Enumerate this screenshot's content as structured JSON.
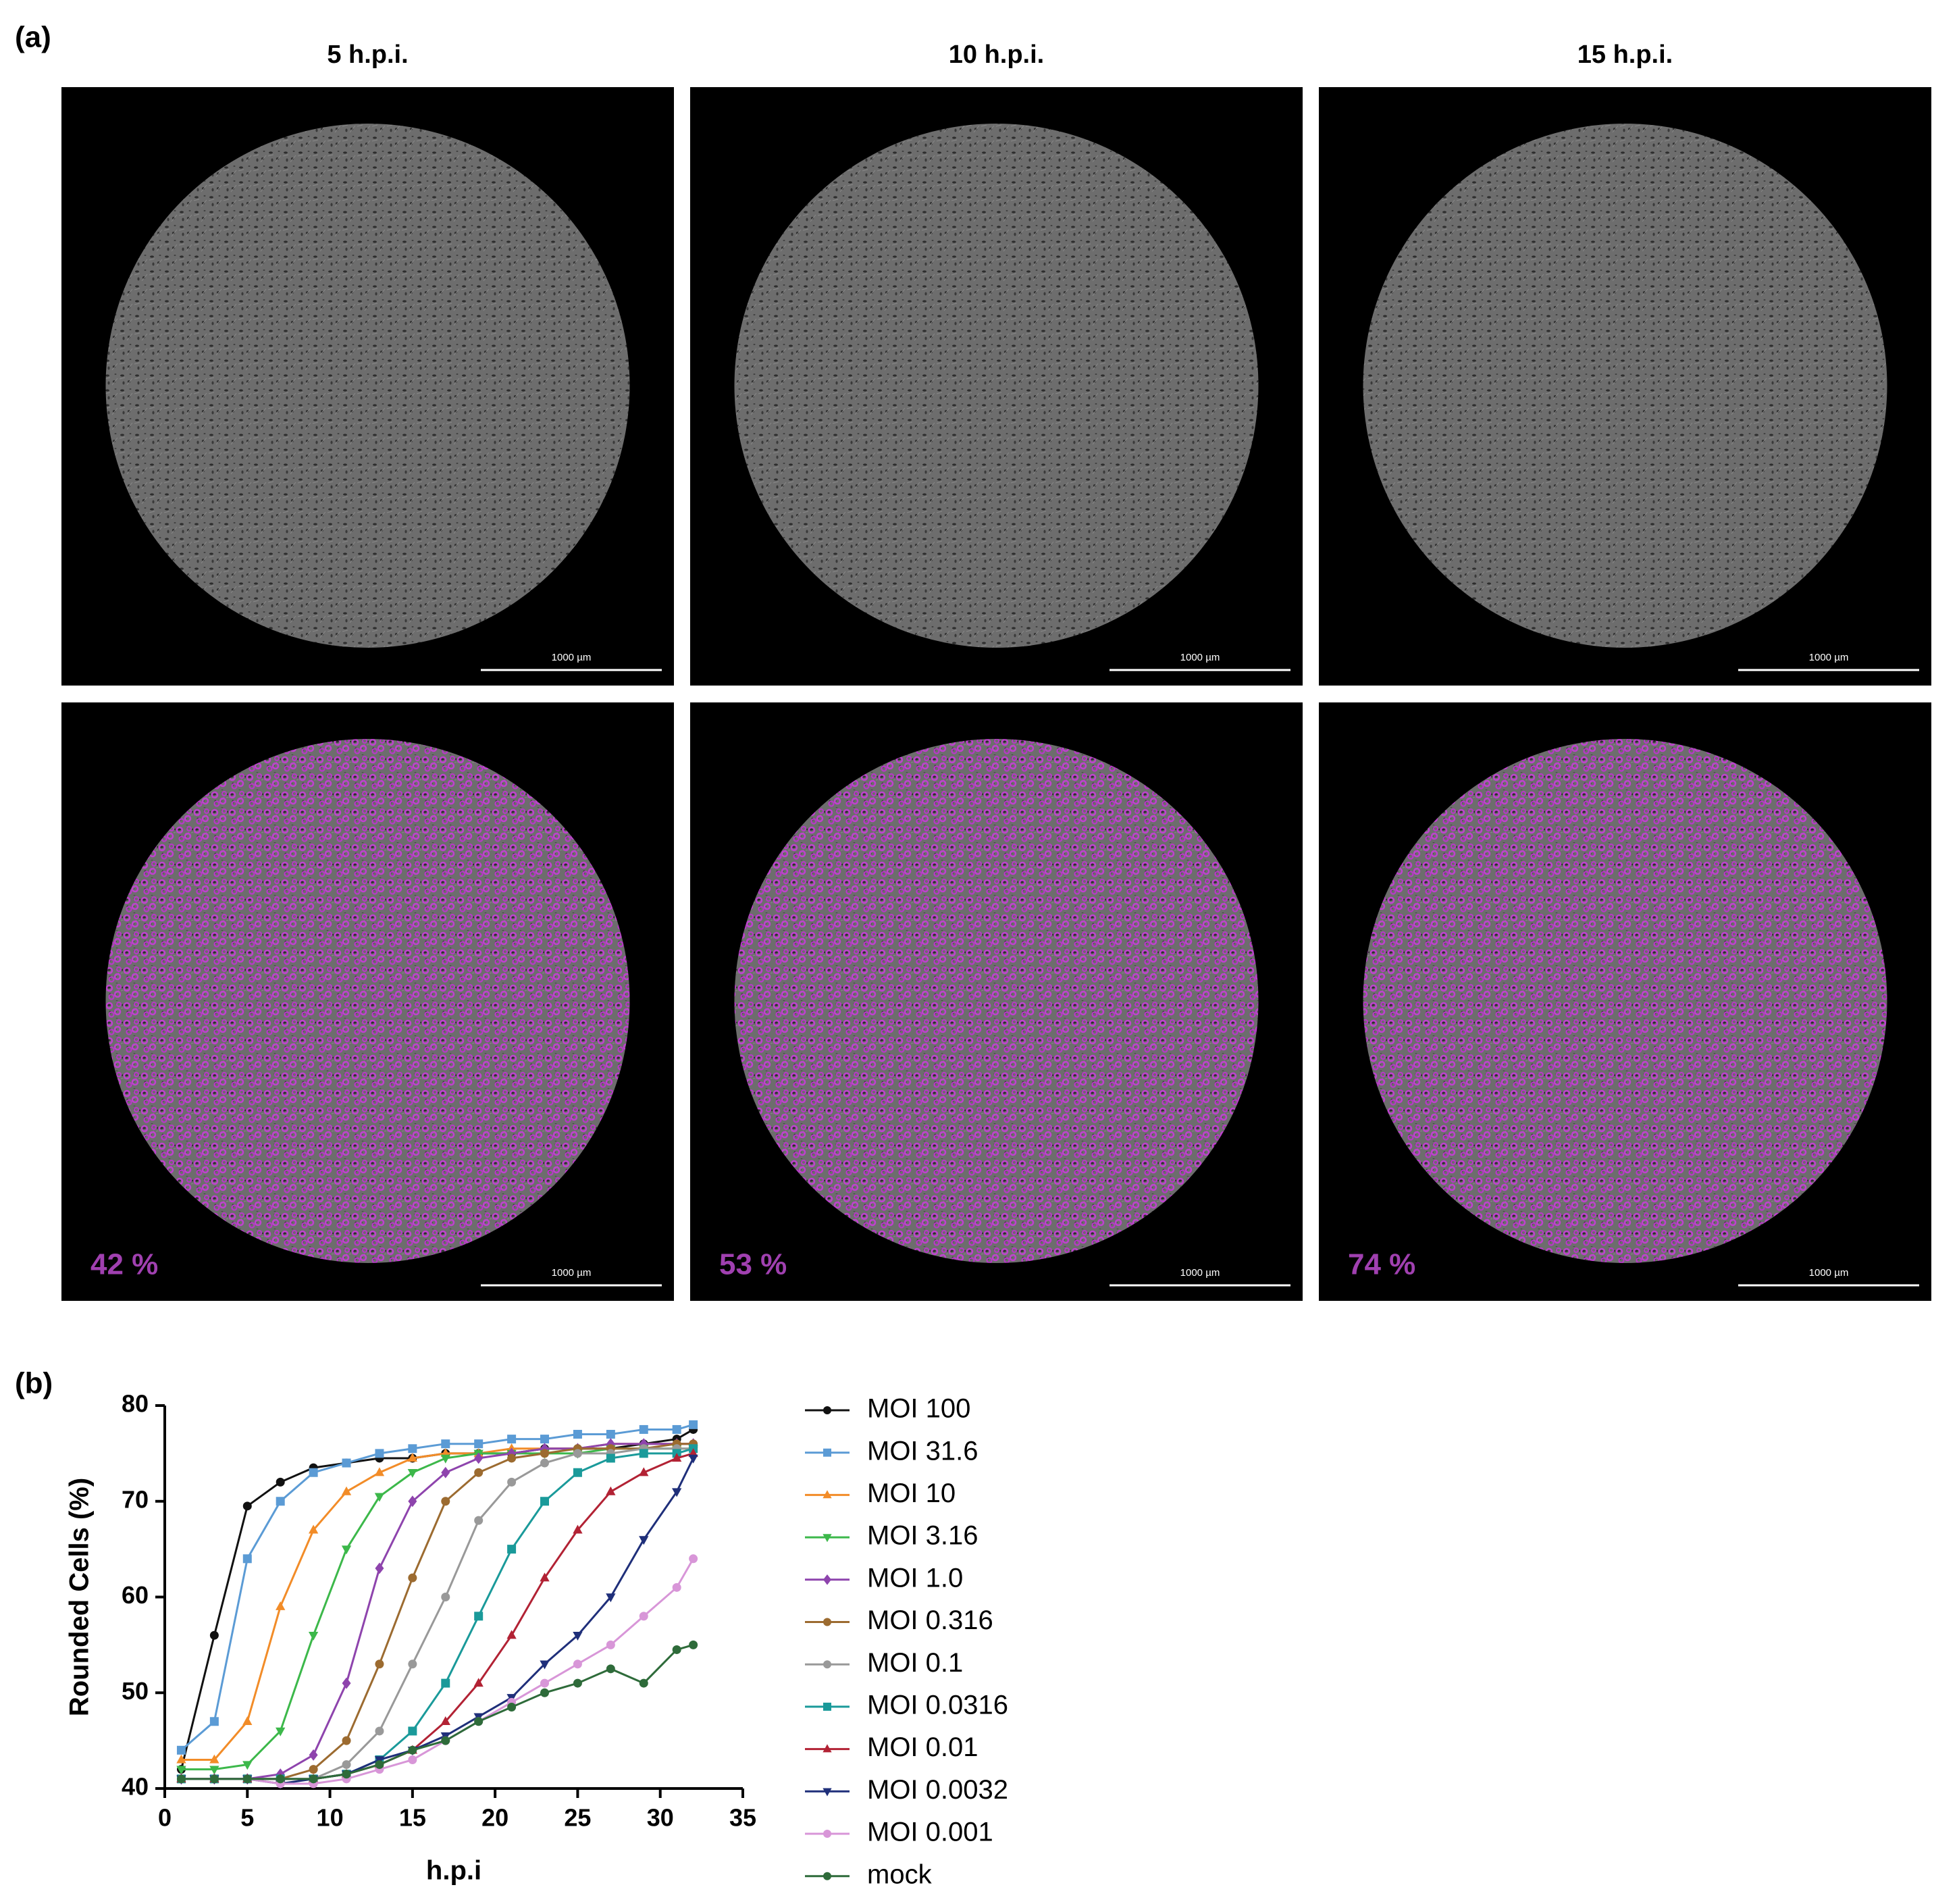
{
  "panel_labels": [
    "(a)",
    "(b)"
  ],
  "micrographs": {
    "columns": [
      "5 h.p.i.",
      "10 h.p.i.",
      "15 h.p.i."
    ],
    "rows": [
      [
        {
          "scale_bar": "1000 µm"
        },
        {
          "scale_bar": "1000 µm"
        },
        {
          "scale_bar": "1000 µm"
        }
      ],
      [
        {
          "scale_bar": "1000 µm",
          "percent": "42 %"
        },
        {
          "scale_bar": "1000 µm",
          "percent": "53 %"
        },
        {
          "scale_bar": "1000 µm",
          "percent": "74 %"
        }
      ]
    ]
  },
  "chart_data": {
    "type": "scatter",
    "x_label": "h.p.i",
    "y_label": "Rounded Cells (%)",
    "xlim": [
      0,
      35
    ],
    "xticks": [
      0,
      5,
      10,
      15,
      20,
      25,
      30,
      35
    ],
    "ylim": [
      40,
      80
    ],
    "yticks": [
      40,
      50,
      60,
      70,
      80
    ],
    "grid": false,
    "legend": "right",
    "x": [
      1,
      3,
      5,
      7,
      9,
      11,
      13,
      15,
      17,
      19,
      21,
      23,
      25,
      27,
      29,
      31,
      32
    ],
    "series": [
      {
        "name": "MOI 100",
        "color": "#111111",
        "marker": "circle",
        "values": [
          42,
          56,
          69.5,
          72,
          73.5,
          74,
          74.5,
          74.5,
          75,
          75,
          75,
          75.5,
          75.5,
          75.5,
          76,
          76.5,
          77.5
        ]
      },
      {
        "name": "MOI 31.6",
        "color": "#5b9bd5",
        "marker": "square",
        "values": [
          44,
          47,
          64,
          70,
          73,
          74,
          75,
          75.5,
          76,
          76,
          76.5,
          76.5,
          77,
          77,
          77.5,
          77.5,
          78
        ]
      },
      {
        "name": "MOI 10",
        "color": "#f28c28",
        "marker": "triangle-up",
        "values": [
          43,
          43,
          47,
          59,
          67,
          71,
          73,
          74.5,
          75,
          75,
          75.5,
          75.5,
          75.5,
          76,
          76,
          76,
          76
        ]
      },
      {
        "name": "MOI 3.16",
        "color": "#3cb84a",
        "marker": "triangle-down",
        "values": [
          42,
          42,
          42.5,
          46,
          56,
          65,
          70.5,
          73,
          74.5,
          75,
          75,
          75,
          75,
          75.5,
          75.5,
          75.5,
          75.5
        ]
      },
      {
        "name": "MOI 1.0",
        "color": "#8e44ad",
        "marker": "diamond",
        "values": [
          41,
          41,
          41,
          41.5,
          43.5,
          51,
          63,
          70,
          73,
          74.5,
          75,
          75.5,
          75.5,
          76,
          76,
          76,
          76
        ]
      },
      {
        "name": "MOI 0.316",
        "color": "#9c6b30",
        "marker": "circle",
        "values": [
          41,
          41,
          41,
          41,
          42,
          45,
          53,
          62,
          70,
          73,
          74.5,
          75,
          75.5,
          75.5,
          75.5,
          76,
          76
        ]
      },
      {
        "name": "MOI 0.1",
        "color": "#999999",
        "marker": "circle",
        "values": [
          41,
          41,
          41,
          41,
          41,
          42.5,
          46,
          53,
          60,
          68,
          72,
          74,
          75,
          75,
          75.5,
          75.5,
          75.5
        ]
      },
      {
        "name": "MOI 0.0316",
        "color": "#1a9a9a",
        "marker": "square",
        "values": [
          41,
          41,
          41,
          41,
          41,
          41.5,
          43,
          46,
          51,
          58,
          65,
          70,
          73,
          74.5,
          75,
          75,
          75.5
        ]
      },
      {
        "name": "MOI 0.01",
        "color": "#b22234",
        "marker": "triangle-up",
        "values": [
          41,
          41,
          41,
          41,
          41,
          41.5,
          42.5,
          44,
          47,
          51,
          56,
          62,
          67,
          71,
          73,
          74.5,
          75
        ]
      },
      {
        "name": "MOI 0.0032",
        "color": "#1f2f7a",
        "marker": "triangle-down",
        "values": [
          41,
          41,
          41,
          40.5,
          41,
          41.5,
          43,
          44,
          45.5,
          47.5,
          49.5,
          53,
          56,
          60,
          66,
          71,
          74.5
        ]
      },
      {
        "name": "MOI 0.001",
        "color": "#d896d8",
        "marker": "circle",
        "values": [
          41,
          41,
          41,
          40.5,
          40.5,
          41,
          42,
          43,
          45,
          47,
          49,
          51,
          53,
          55,
          58,
          61,
          64
        ]
      },
      {
        "name": "mock",
        "color": "#2e6b3a",
        "marker": "circle",
        "values": [
          41,
          41,
          41,
          41,
          41,
          41.5,
          42.5,
          44,
          45,
          47,
          48.5,
          50,
          51,
          52.5,
          51,
          54.5,
          55
        ]
      }
    ]
  }
}
